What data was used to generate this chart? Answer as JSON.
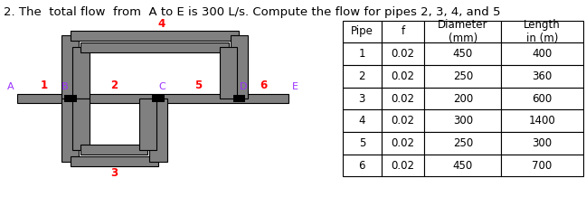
{
  "title": "2. The  total flow  from  A to E is 300 L/s. Compute the flow for pipes 2, 3, 4, and 5",
  "title_fontsize": 9.5,
  "bg_color": "#ffffff",
  "pipe_label_color": "#ff0000",
  "node_label_color": "#9b30ff",
  "node_sq_color": "#000000",
  "pipe_line_color": "#808080",
  "pipe_border_color": "#000000",
  "table_data": {
    "col_headers": [
      "Pipe",
      "f",
      "Diameter\n(mm)",
      "Length\nin (m)"
    ],
    "rows": [
      [
        "1",
        "0.02",
        "450",
        "400"
      ],
      [
        "2",
        "0.02",
        "250",
        "360"
      ],
      [
        "3",
        "0.02",
        "200",
        "600"
      ],
      [
        "4",
        "0.02",
        "300",
        "1400"
      ],
      [
        "5",
        "0.02",
        "250",
        "300"
      ],
      [
        "6",
        "0.02",
        "450",
        "700"
      ]
    ]
  }
}
